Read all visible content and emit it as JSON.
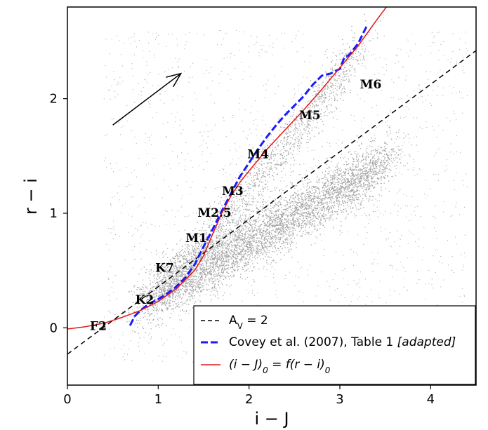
{
  "chart_data": {
    "type": "scatter",
    "xlabel": "i − J",
    "ylabel": "r − i",
    "xlim": [
      0,
      4.5
    ],
    "ylim": [
      -0.5,
      2.8
    ],
    "x_ticks": [
      {
        "v": 0,
        "label": "0"
      },
      {
        "v": 1,
        "label": "1"
      },
      {
        "v": 2,
        "label": "2"
      },
      {
        "v": 3,
        "label": "3"
      },
      {
        "v": 4,
        "label": "4"
      }
    ],
    "y_ticks": [
      {
        "v": 0,
        "label": "0"
      },
      {
        "v": 1,
        "label": "1"
      },
      {
        "v": 2,
        "label": "2"
      }
    ],
    "background_density": {
      "color": "#555555",
      "description_points": 0
    },
    "reddening_arrow": {
      "x0": 0.5,
      "y0": 1.77,
      "x1": 1.25,
      "y1": 2.22
    },
    "spectral_types": [
      {
        "label": "F2",
        "x": 0.34,
        "y": -0.02
      },
      {
        "label": "K2",
        "x": 0.85,
        "y": 0.21
      },
      {
        "label": "K7",
        "x": 1.07,
        "y": 0.49
      },
      {
        "label": "M1",
        "x": 1.42,
        "y": 0.75
      },
      {
        "label": "M2.5",
        "x": 1.62,
        "y": 0.97
      },
      {
        "label": "M3",
        "x": 1.82,
        "y": 1.16
      },
      {
        "label": "M4",
        "x": 2.1,
        "y": 1.48
      },
      {
        "label": "M5",
        "x": 2.67,
        "y": 1.82
      },
      {
        "label": "M6",
        "x": 3.34,
        "y": 2.09
      }
    ],
    "series": [
      {
        "name": "A_V = 2",
        "style": "dashed",
        "color": "#000000",
        "x": [
          0.0,
          4.5
        ],
        "y": [
          -0.23,
          2.42
        ]
      },
      {
        "name": "Covey et al. (2007), Table 1 [adapted]",
        "style": "dashed",
        "color": "#1a1aff",
        "x": [
          0.69,
          0.74,
          0.8,
          0.9,
          1.0,
          1.1,
          1.2,
          1.3,
          1.4,
          1.5,
          1.6,
          1.7,
          1.8,
          1.9,
          2.0,
          2.1,
          2.2,
          2.3,
          2.4,
          2.5,
          2.6,
          2.7,
          2.8,
          2.9,
          3.0,
          3.05,
          3.1,
          3.2,
          3.3
        ],
        "y": [
          0.02,
          0.1,
          0.15,
          0.21,
          0.25,
          0.3,
          0.36,
          0.44,
          0.55,
          0.71,
          0.86,
          1.02,
          1.17,
          1.32,
          1.44,
          1.56,
          1.67,
          1.77,
          1.86,
          1.94,
          2.02,
          2.12,
          2.2,
          2.22,
          2.26,
          2.36,
          2.38,
          2.48,
          2.64
        ]
      },
      {
        "name": "(i − J)0 = f(r − i)0",
        "style": "solid",
        "color": "#e01818",
        "x": [
          0.0,
          0.2,
          0.4,
          0.6,
          0.8,
          1.0,
          1.2,
          1.4,
          1.5,
          1.6,
          1.7,
          1.8,
          1.9,
          2.0,
          2.2,
          2.4,
          2.6,
          2.8,
          3.0,
          3.2,
          3.4,
          3.55
        ],
        "y": [
          -0.01,
          0.01,
          0.04,
          0.09,
          0.15,
          0.23,
          0.34,
          0.5,
          0.63,
          0.82,
          1.0,
          1.15,
          1.27,
          1.37,
          1.56,
          1.73,
          1.9,
          2.08,
          2.27,
          2.46,
          2.68,
          2.84
        ]
      }
    ],
    "legend": {
      "placement": "bottom-right",
      "entries": [
        {
          "label": "A",
          "sub": "V",
          "rest": " = 2",
          "color": "#000000",
          "style": "dashed-thin"
        },
        {
          "label": "Covey et al. (2007), Table 1 ",
          "italic": "[adapted]",
          "color": "#1a1aff",
          "style": "dashed"
        },
        {
          "label": "(i − J)",
          "sub": "0",
          "rest": " = f(r − i)",
          "sub2": "0",
          "color": "#e01818",
          "style": "solid",
          "italic_all": true
        }
      ]
    }
  }
}
